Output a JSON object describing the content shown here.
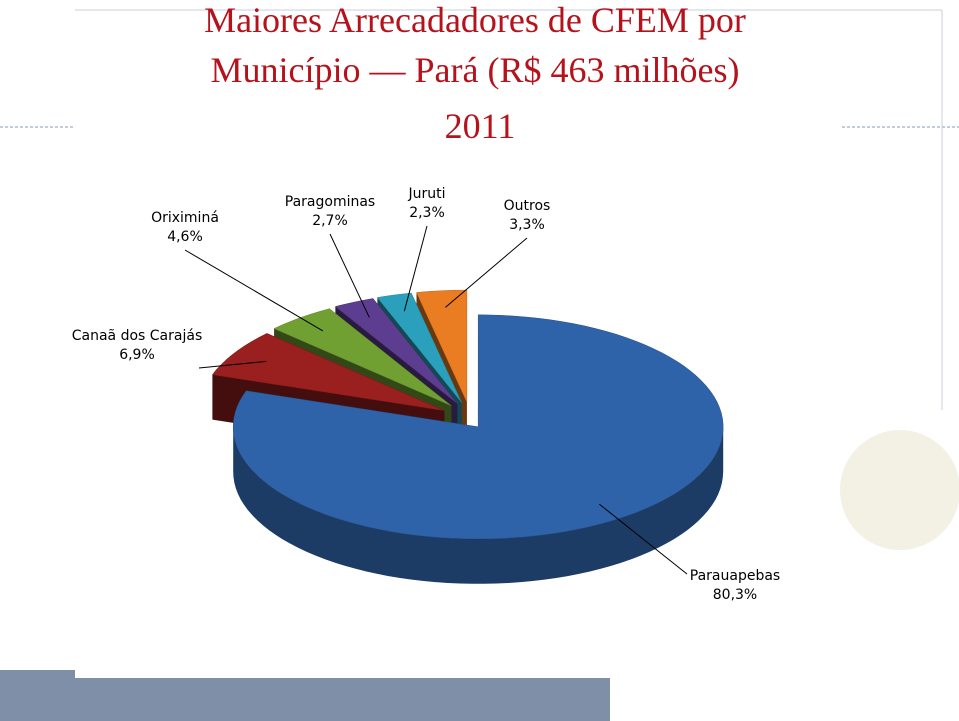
{
  "chart_data": {
    "type": "pie3d",
    "title": "Maiores Arrecadadores de CFEM por Município — Pará (R$ 463 milhões)",
    "title_lines": [
      "Maiores Arrecadadores de CFEM por",
      "Município — Pará (R$ 463 milhões)"
    ],
    "subtitle": "2011",
    "categories": [
      "Parauapebas",
      "Canaã dos Carajás",
      "Oriximiná",
      "Paragominas",
      "Juruti",
      "Outros"
    ],
    "values": [
      80.3,
      6.9,
      4.6,
      2.7,
      2.3,
      3.3
    ],
    "value_labels": [
      "80,3%",
      "6,9%",
      "4,6%",
      "2,7%",
      "2,3%",
      "3,3%"
    ],
    "colors": [
      "#2f63a9",
      "#9a1f1f",
      "#71a032",
      "#5c3d8f",
      "#2aa0bd",
      "#ea7d22"
    ]
  }
}
